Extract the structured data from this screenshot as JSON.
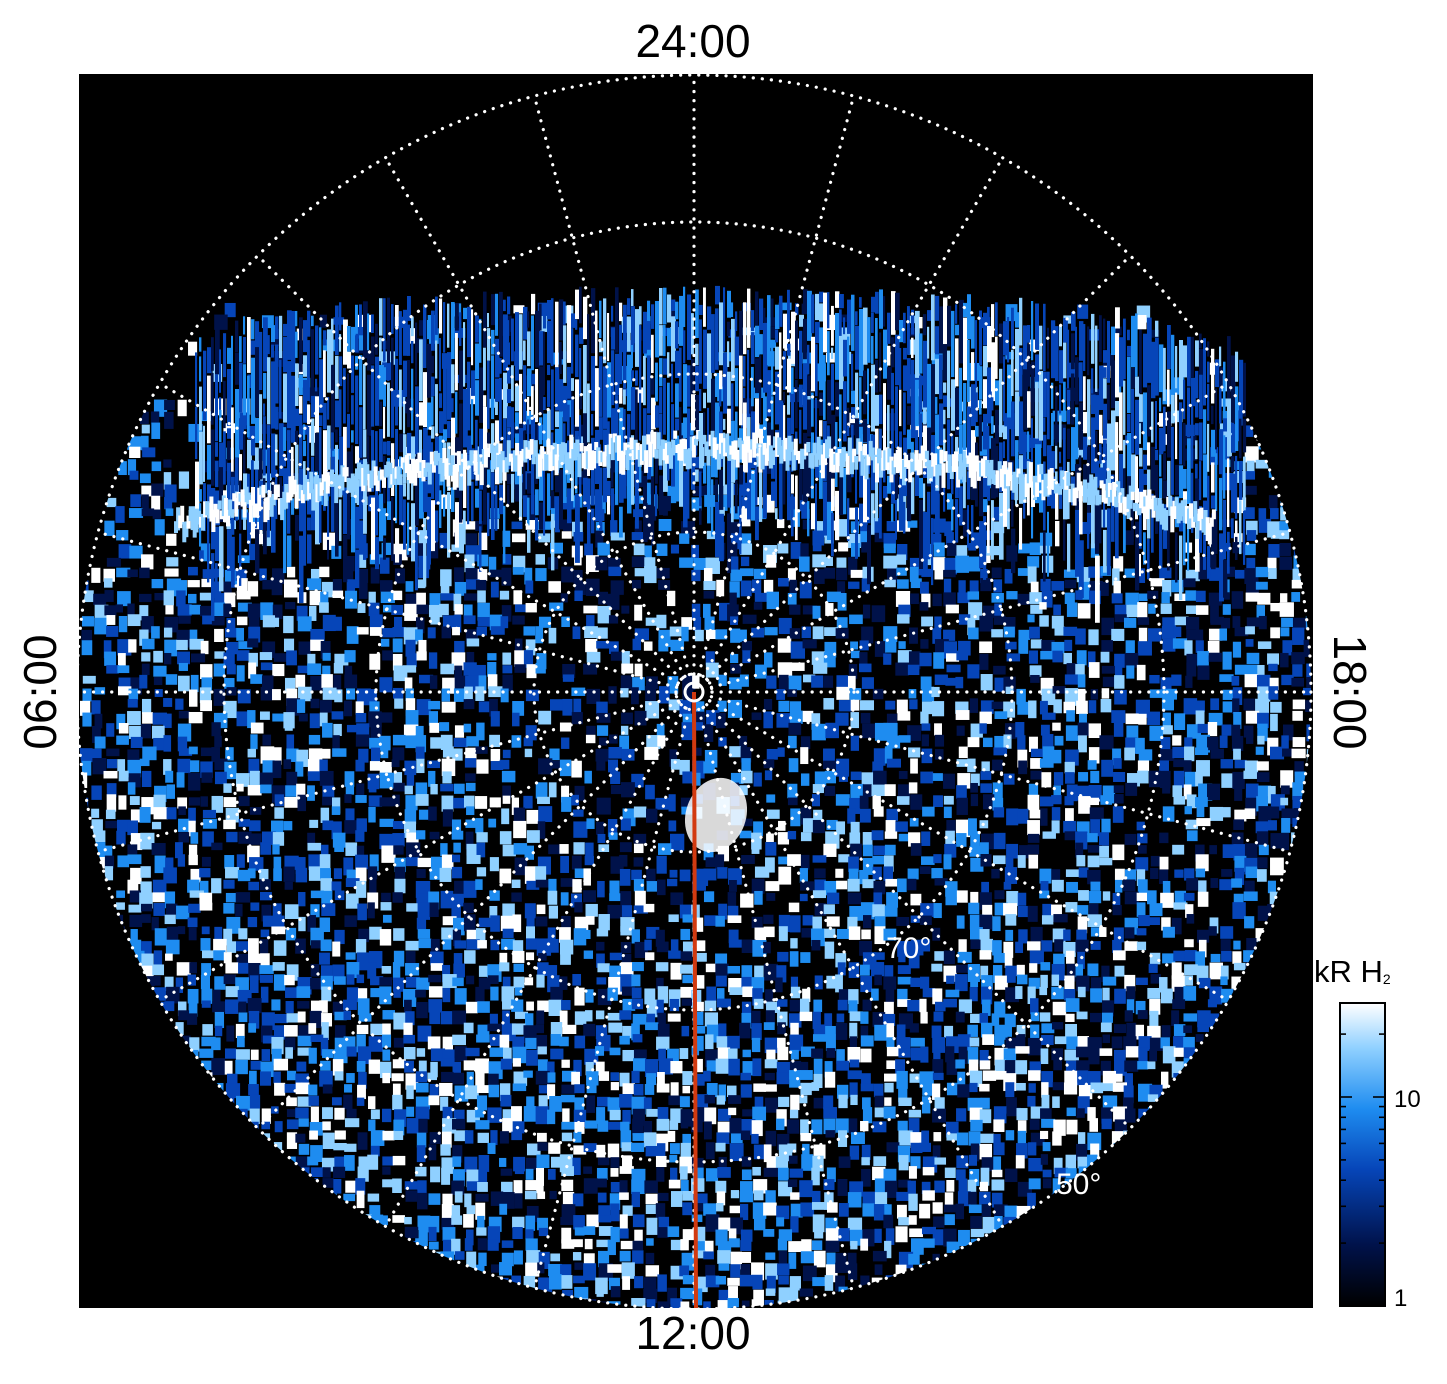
{
  "figure": {
    "hour_labels": {
      "top": "24:00",
      "bottom": "12:00",
      "left": "06:00",
      "right": "18:00"
    },
    "latitude_labels": [
      "70°",
      "50°"
    ],
    "colorbar": {
      "title": "kR H",
      "title_subscript": "2",
      "ticks": [
        "10",
        "1"
      ],
      "scale": "log",
      "colors": [
        "#000000",
        "#00124a",
        "#0645b8",
        "#1e8cf0",
        "#8fd0ff",
        "#ffffff"
      ]
    },
    "colors": {
      "background": "#000000",
      "grid": "#ffffff",
      "meridian_line": "#d23a10"
    }
  }
}
